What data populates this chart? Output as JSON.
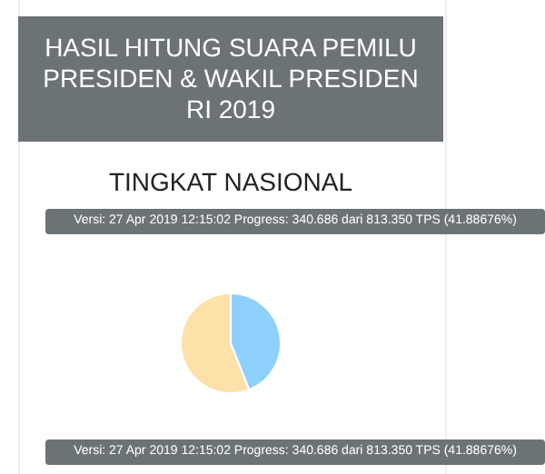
{
  "chart_data": {
    "type": "pie",
    "title": "HASIL HITUNG SUARA PEMILU PRESIDEN & WAKIL PRESIDEN RI 2019",
    "subtitle": "TINGKAT NASIONAL",
    "categories": [
      null,
      null
    ],
    "values": [
      44,
      56
    ],
    "colors": [
      "#8dd0fb",
      "#fde1a8"
    ],
    "annotations": [
      "Versi: 27 Apr 2019 12:15:02 Progress: 340.686 dari 813.350 TPS (41.88676%)",
      "Versi: 27 Apr 2019 12:15:02 Progress: 340.686 dari 813.350 TPS (41.88676%)"
    ]
  }
}
